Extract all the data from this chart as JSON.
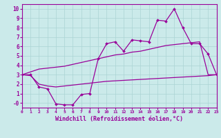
{
  "xlabel": "Windchill (Refroidissement éolien,°C)",
  "ylabel": "",
  "background_color": "#cbeaea",
  "grid_color": "#aad4d4",
  "line_color": "#990099",
  "x_hours": [
    0,
    1,
    2,
    3,
    4,
    5,
    6,
    7,
    8,
    9,
    10,
    11,
    12,
    13,
    14,
    15,
    16,
    17,
    18,
    19,
    20,
    21,
    22,
    23
  ],
  "windchill_data": [
    3.0,
    3.0,
    1.7,
    1.5,
    -0.1,
    -0.2,
    -0.2,
    0.9,
    1.0,
    4.7,
    6.3,
    6.5,
    5.5,
    6.7,
    6.6,
    6.5,
    8.8,
    8.7,
    10.0,
    8.0,
    6.3,
    6.3,
    5.2,
    3.0
  ],
  "line_upper": [
    3.0,
    3.3,
    3.6,
    3.7,
    3.8,
    3.9,
    4.1,
    4.3,
    4.5,
    4.7,
    4.9,
    5.1,
    5.2,
    5.4,
    5.5,
    5.7,
    5.9,
    6.1,
    6.2,
    6.3,
    6.4,
    6.5,
    3.0,
    3.0
  ],
  "line_lower": [
    3.0,
    2.9,
    2.0,
    1.8,
    1.7,
    1.8,
    1.9,
    2.0,
    2.1,
    2.2,
    2.3,
    2.35,
    2.4,
    2.45,
    2.5,
    2.55,
    2.6,
    2.65,
    2.7,
    2.75,
    2.8,
    2.85,
    2.9,
    3.0
  ],
  "xlim": [
    0,
    23
  ],
  "ylim": [
    -0.5,
    10.5
  ],
  "yticks": [
    0,
    1,
    2,
    3,
    4,
    5,
    6,
    7,
    8,
    9,
    10
  ],
  "ytick_labels": [
    "-0",
    "1",
    "2",
    "3",
    "4",
    "5",
    "6",
    "7",
    "8",
    "9",
    "10"
  ]
}
